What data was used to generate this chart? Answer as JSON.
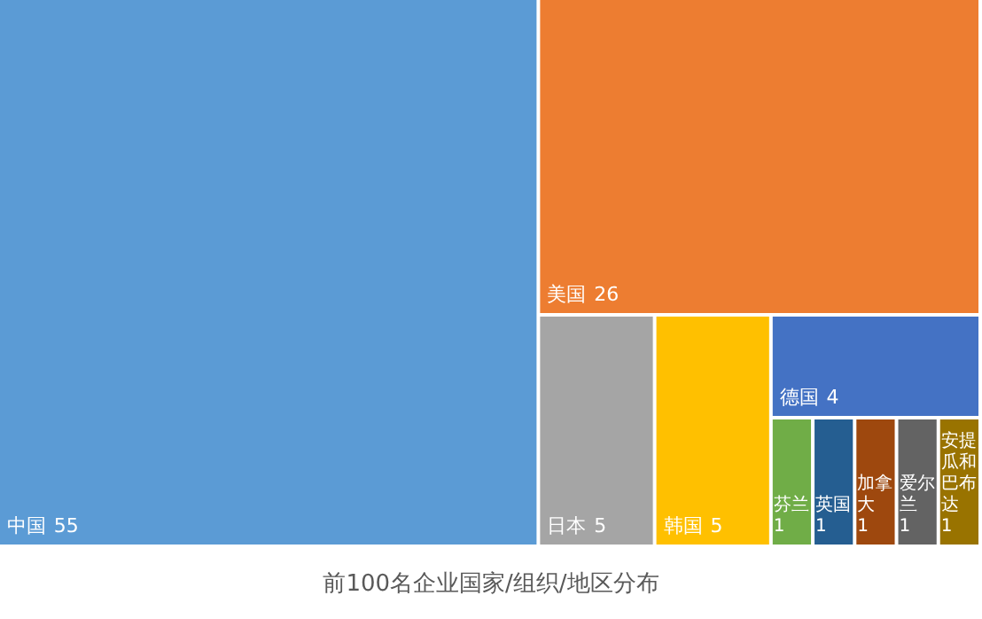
{
  "chart_data": {
    "type": "other",
    "title": "前100名企业国家/组织/地区分布",
    "categories": [
      "中国",
      "美国",
      "日本",
      "韩国",
      "德国",
      "芬兰",
      "英国",
      "加拿大",
      "爱尔兰",
      "安提瓜和巴布达"
    ],
    "values": [
      55,
      26,
      5,
      5,
      4,
      1,
      1,
      1,
      1,
      1
    ],
    "colors": [
      "#5b9bd5",
      "#ed7d31",
      "#a5a5a5",
      "#ffc000",
      "#4472c4",
      "#70ad47",
      "#255e91",
      "#9e480e",
      "#636363",
      "#997300"
    ],
    "data_labels": true
  }
}
